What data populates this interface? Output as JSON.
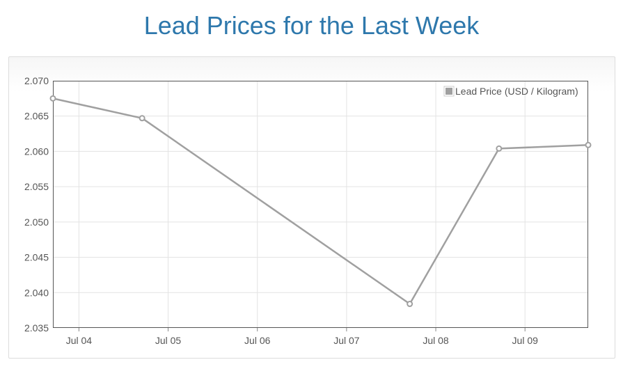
{
  "page": {
    "title": "Lead Prices for the Last Week"
  },
  "chart_data": {
    "type": "line",
    "title": "Lead Prices for the Last Week",
    "xlabel": "",
    "ylabel": "",
    "x_ticks": [
      "Jul 04",
      "Jul 05",
      "Jul 06",
      "Jul 07",
      "Jul 08",
      "Jul 09"
    ],
    "x_range": [
      "2020-07-03 17:00",
      "2020-07-09 17:00"
    ],
    "ylim": [
      2.035,
      2.07
    ],
    "y_ticks": [
      "2.035",
      "2.040",
      "2.045",
      "2.050",
      "2.055",
      "2.060",
      "2.065",
      "2.070"
    ],
    "grid": true,
    "legend_position": "top-right",
    "series": [
      {
        "name": "Lead Price (USD / Kilogram)",
        "color": "#a0a0a0",
        "points": [
          {
            "x": "2020-07-03 17:00",
            "y": 2.0675
          },
          {
            "x": "2020-07-04 17:00",
            "y": 2.0647
          },
          {
            "x": "2020-07-07 17:00",
            "y": 2.0384
          },
          {
            "x": "2020-07-08 17:00",
            "y": 2.0604
          },
          {
            "x": "2020-07-09 17:00",
            "y": 2.0609
          }
        ]
      }
    ]
  }
}
